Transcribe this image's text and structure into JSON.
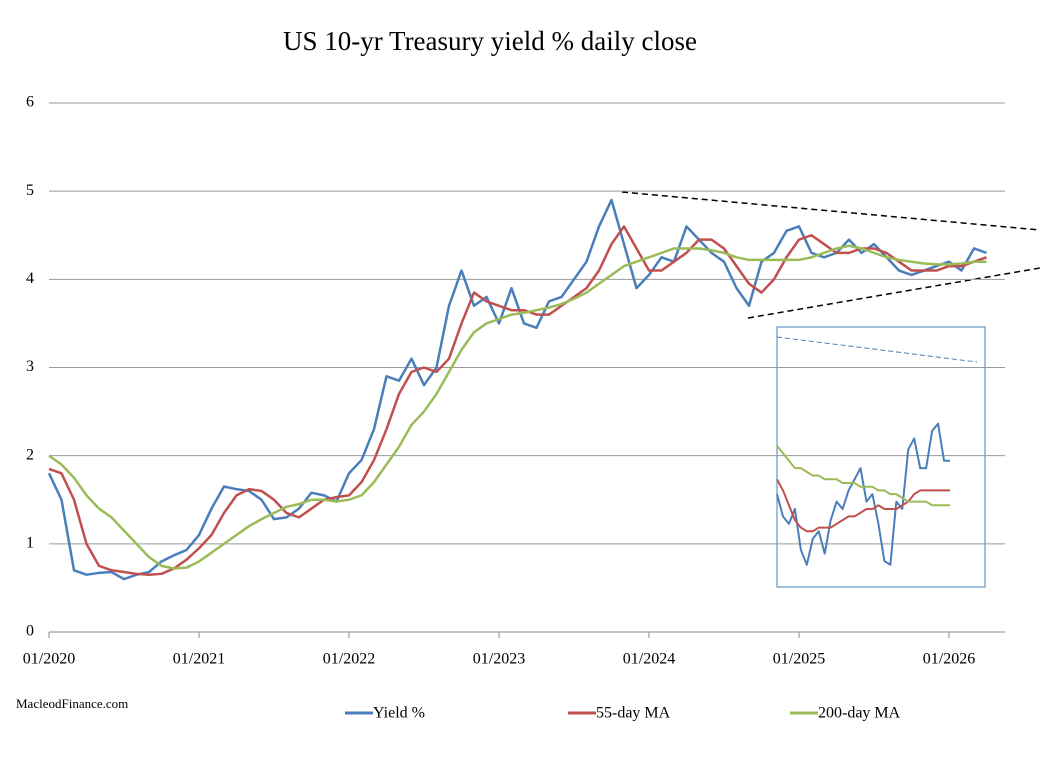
{
  "chart_data": [
    {
      "type": "line",
      "title": "US 10-yr Treasury yield % daily close",
      "source": "MacleodFinance.com",
      "x": [
        "01/2020",
        "02/2020",
        "03/2020",
        "04/2020",
        "05/2020",
        "06/2020",
        "07/2020",
        "08/2020",
        "09/2020",
        "10/2020",
        "11/2020",
        "12/2020",
        "01/2021",
        "02/2021",
        "03/2021",
        "04/2021",
        "05/2021",
        "06/2021",
        "07/2021",
        "08/2021",
        "09/2021",
        "10/2021",
        "11/2021",
        "12/2021",
        "01/2022",
        "02/2022",
        "03/2022",
        "04/2022",
        "05/2022",
        "06/2022",
        "07/2022",
        "08/2022",
        "09/2022",
        "10/2022",
        "11/2022",
        "12/2022",
        "01/2023",
        "02/2023",
        "03/2023",
        "04/2023",
        "05/2023",
        "06/2023",
        "07/2023",
        "08/2023",
        "09/2023",
        "10/2023",
        "11/2023",
        "12/2023",
        "01/2024",
        "02/2024",
        "03/2024",
        "04/2024",
        "05/2024",
        "06/2024",
        "07/2024",
        "08/2024",
        "09/2024",
        "10/2024",
        "11/2024",
        "12/2024",
        "01/2025",
        "02/2025",
        "03/2025",
        "04/2025",
        "05/2025",
        "06/2025",
        "07/2025",
        "08/2025",
        "09/2025",
        "10/2025",
        "11/2025",
        "12/2025",
        "01/2026",
        "02/2026",
        "03/2026",
        "04/2026"
      ],
      "xticks": [
        "01/2020",
        "01/2021",
        "01/2022",
        "01/2023",
        "01/2024",
        "01/2025",
        "01/2026"
      ],
      "ylim": [
        0,
        6
      ],
      "yticks": [
        0,
        1,
        2,
        3,
        4,
        5,
        6
      ],
      "grid": true,
      "legend": "bottom",
      "series": [
        {
          "name": "Yield %",
          "color": "#4a7ebb",
          "values": [
            1.8,
            1.5,
            0.7,
            0.65,
            0.67,
            0.68,
            0.6,
            0.65,
            0.68,
            0.8,
            0.87,
            0.93,
            1.1,
            1.4,
            1.65,
            1.62,
            1.6,
            1.5,
            1.28,
            1.3,
            1.4,
            1.58,
            1.55,
            1.48,
            1.8,
            1.95,
            2.3,
            2.9,
            2.85,
            3.1,
            2.8,
            3.0,
            3.7,
            4.1,
            3.7,
            3.8,
            3.5,
            3.9,
            3.5,
            3.45,
            3.75,
            3.8,
            4.0,
            4.2,
            4.6,
            4.9,
            4.4,
            3.9,
            4.05,
            4.25,
            4.2,
            4.6,
            4.45,
            4.3,
            4.2,
            3.9,
            3.7,
            4.2,
            4.3,
            4.55,
            4.6,
            4.3,
            4.25,
            4.3,
            4.45,
            4.3,
            4.4,
            4.25,
            4.1,
            4.05,
            4.1,
            4.15,
            4.2,
            4.1,
            4.35,
            4.3
          ]
        },
        {
          "name": "55-day MA",
          "color": "#c0504d",
          "values": [
            1.85,
            1.8,
            1.5,
            1.0,
            0.75,
            0.7,
            0.68,
            0.66,
            0.65,
            0.66,
            0.72,
            0.82,
            0.95,
            1.1,
            1.35,
            1.55,
            1.62,
            1.6,
            1.5,
            1.35,
            1.3,
            1.4,
            1.5,
            1.53,
            1.55,
            1.7,
            1.95,
            2.3,
            2.7,
            2.95,
            3.0,
            2.95,
            3.1,
            3.5,
            3.85,
            3.75,
            3.7,
            3.65,
            3.65,
            3.6,
            3.6,
            3.7,
            3.8,
            3.9,
            4.1,
            4.4,
            4.6,
            4.35,
            4.1,
            4.1,
            4.2,
            4.3,
            4.45,
            4.45,
            4.35,
            4.15,
            3.95,
            3.85,
            4.0,
            4.25,
            4.45,
            4.5,
            4.4,
            4.3,
            4.3,
            4.35,
            4.35,
            4.3,
            4.2,
            4.1,
            4.1,
            4.1,
            4.15,
            4.15,
            4.2,
            4.25
          ]
        },
        {
          "name": "200-day MA",
          "color": "#9bbb59",
          "values": [
            2.0,
            1.9,
            1.75,
            1.55,
            1.4,
            1.3,
            1.15,
            1.0,
            0.85,
            0.75,
            0.72,
            0.73,
            0.8,
            0.9,
            1.0,
            1.1,
            1.2,
            1.28,
            1.35,
            1.42,
            1.45,
            1.5,
            1.5,
            1.48,
            1.5,
            1.55,
            1.7,
            1.9,
            2.1,
            2.35,
            2.5,
            2.7,
            2.95,
            3.2,
            3.4,
            3.5,
            3.55,
            3.6,
            3.62,
            3.65,
            3.68,
            3.72,
            3.78,
            3.85,
            3.95,
            4.05,
            4.15,
            4.2,
            4.25,
            4.3,
            4.35,
            4.35,
            4.35,
            4.33,
            4.3,
            4.25,
            4.22,
            4.22,
            4.22,
            4.22,
            4.22,
            4.25,
            4.3,
            4.35,
            4.38,
            4.35,
            4.3,
            4.25,
            4.22,
            4.2,
            4.18,
            4.17,
            4.17,
            4.18,
            4.2,
            4.2
          ]
        }
      ]
    },
    {
      "type": "inset-line",
      "ylim": [
        3.9,
        4.6
      ],
      "series": [
        {
          "color": "#4a7ebb",
          "values": [
            4.15,
            4.09,
            4.07,
            4.11,
            4.0,
            3.96,
            4.03,
            4.05,
            3.99,
            4.08,
            4.13,
            4.11,
            4.16,
            4.19,
            4.22,
            4.13,
            4.15,
            4.07,
            3.97,
            3.96,
            4.13,
            4.11,
            4.27,
            4.3,
            4.22,
            4.22,
            4.32,
            4.34,
            4.24,
            4.24
          ]
        },
        {
          "color": "#c0504d",
          "values": [
            4.19,
            4.16,
            4.12,
            4.08,
            4.06,
            4.05,
            4.05,
            4.06,
            4.06,
            4.06,
            4.07,
            4.08,
            4.09,
            4.09,
            4.1,
            4.11,
            4.11,
            4.12,
            4.11,
            4.11,
            4.11,
            4.12,
            4.13,
            4.15,
            4.16,
            4.16,
            4.16,
            4.16,
            4.16,
            4.16
          ]
        },
        {
          "color": "#9bbb59",
          "values": [
            4.28,
            4.26,
            4.24,
            4.22,
            4.22,
            4.21,
            4.2,
            4.2,
            4.19,
            4.19,
            4.19,
            4.18,
            4.18,
            4.18,
            4.17,
            4.17,
            4.17,
            4.16,
            4.16,
            4.15,
            4.15,
            4.14,
            4.13,
            4.13,
            4.13,
            4.13,
            4.12,
            4.12,
            4.12,
            4.12
          ]
        }
      ]
    }
  ]
}
